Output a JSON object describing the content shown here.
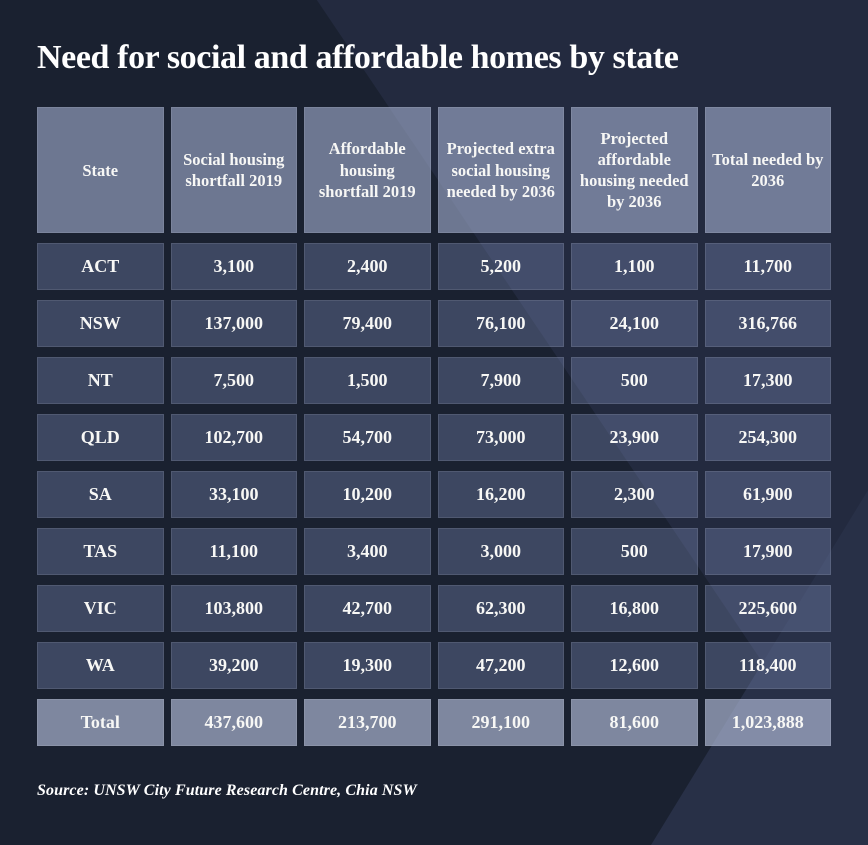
{
  "title": "Need for social and affordable homes by state",
  "source_line": "Source: UNSW City Future Research Centre, Chia NSW",
  "colors": {
    "background": "#232a3f",
    "background_dark_shape": "#1a2130",
    "background_light_shape": "#283047",
    "header_cell": "#76819f",
    "data_cell": "#3e4765",
    "total_cell": "#74809f",
    "text": "#ffffff"
  },
  "chart_data": {
    "type": "table",
    "title": "Need for social and affordable homes by state",
    "columns": [
      "State",
      "Social housing shortfall 2019",
      "Affordable housing shortfall 2019",
      "Projected extra social housing needed by 2036",
      "Projected affordable housing needed by 2036",
      "Total needed by 2036"
    ],
    "rows": [
      [
        "ACT",
        "3,100",
        "2,400",
        "5,200",
        "1,100",
        "11,700"
      ],
      [
        "NSW",
        "137,000",
        "79,400",
        "76,100",
        "24,100",
        "316,766"
      ],
      [
        "NT",
        "7,500",
        "1,500",
        "7,900",
        "500",
        "17,300"
      ],
      [
        "QLD",
        "102,700",
        "54,700",
        "73,000",
        "23,900",
        "254,300"
      ],
      [
        "SA",
        "33,100",
        "10,200",
        "16,200",
        "2,300",
        "61,900"
      ],
      [
        "TAS",
        "11,100",
        "3,400",
        "3,000",
        "500",
        "17,900"
      ],
      [
        "VIC",
        "103,800",
        "42,700",
        "62,300",
        "16,800",
        "225,600"
      ],
      [
        "WA",
        "39,200",
        "19,300",
        "47,200",
        "12,600",
        "118,400"
      ],
      [
        "Total",
        "437,600",
        "213,700",
        "291,100",
        "81,600",
        "1,023,888"
      ]
    ],
    "total_row_index": 8,
    "source": "Source: UNSW City Future Research Centre, Chia NSW",
    "legend_position": "none",
    "grid": false
  }
}
